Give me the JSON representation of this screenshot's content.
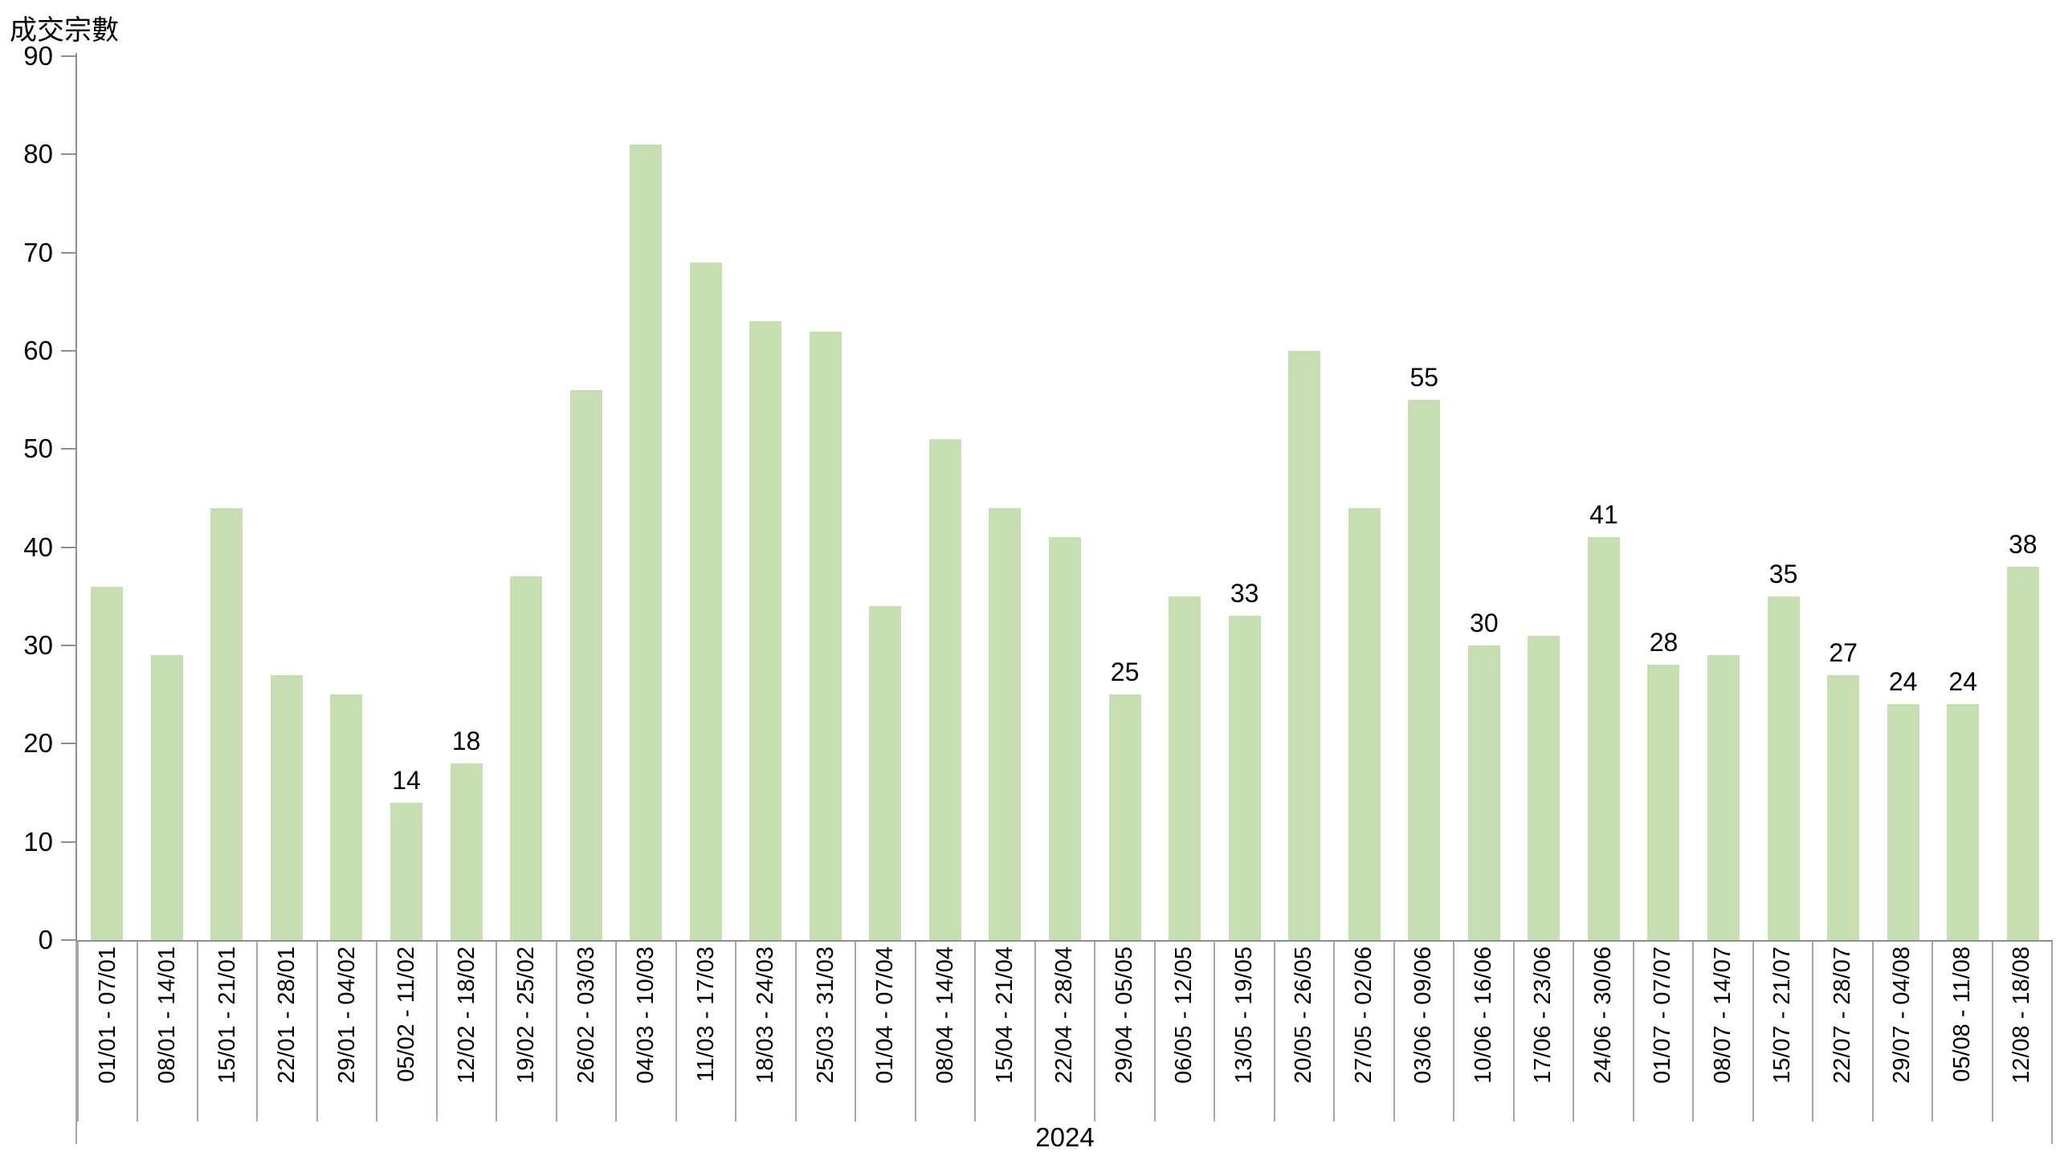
{
  "chart_data": {
    "type": "bar",
    "title": "成交宗數",
    "xlabel": "2024",
    "ylim": [
      0,
      90
    ],
    "ytick_step": 10,
    "yticks": [
      90,
      80,
      70,
      60,
      50,
      40,
      30,
      20,
      10,
      0
    ],
    "grid": "off",
    "legend": "none",
    "bar_color": "#c6deb2",
    "axis_color": "#8e8e8e",
    "categories": [
      "01/01 - 07/01",
      "08/01 - 14/01",
      "15/01 - 21/01",
      "22/01 - 28/01",
      "29/01 - 04/02",
      "05/02 - 11/02",
      "12/02 - 18/02",
      "19/02 - 25/02",
      "26/02 - 03/03",
      "04/03 - 10/03",
      "11/03 - 17/03",
      "18/03 - 24/03",
      "25/03 - 31/03",
      "01/04 - 07/04",
      "08/04 - 14/04",
      "15/04 - 21/04",
      "22/04 - 28/04",
      "29/04 - 05/05",
      "06/05 - 12/05",
      "13/05 - 19/05",
      "20/05 - 26/05",
      "27/05 - 02/06",
      "03/06 - 09/06",
      "10/06 - 16/06",
      "17/06 - 23/06",
      "24/06 - 30/06",
      "01/07 - 07/07",
      "08/07 - 14/07",
      "15/07 - 21/07",
      "22/07 - 28/07",
      "29/07 - 04/08",
      "05/08 - 11/08",
      "12/08 - 18/08"
    ],
    "values": [
      36,
      29,
      44,
      27,
      25,
      14,
      18,
      37,
      56,
      81,
      69,
      63,
      62,
      34,
      51,
      44,
      41,
      25,
      35,
      33,
      60,
      44,
      55,
      30,
      31,
      41,
      28,
      29,
      35,
      27,
      24,
      24,
      38
    ],
    "labeled_indices": [
      5,
      6,
      17,
      19,
      22,
      23,
      25,
      26,
      28,
      29,
      30,
      31,
      32
    ]
  }
}
